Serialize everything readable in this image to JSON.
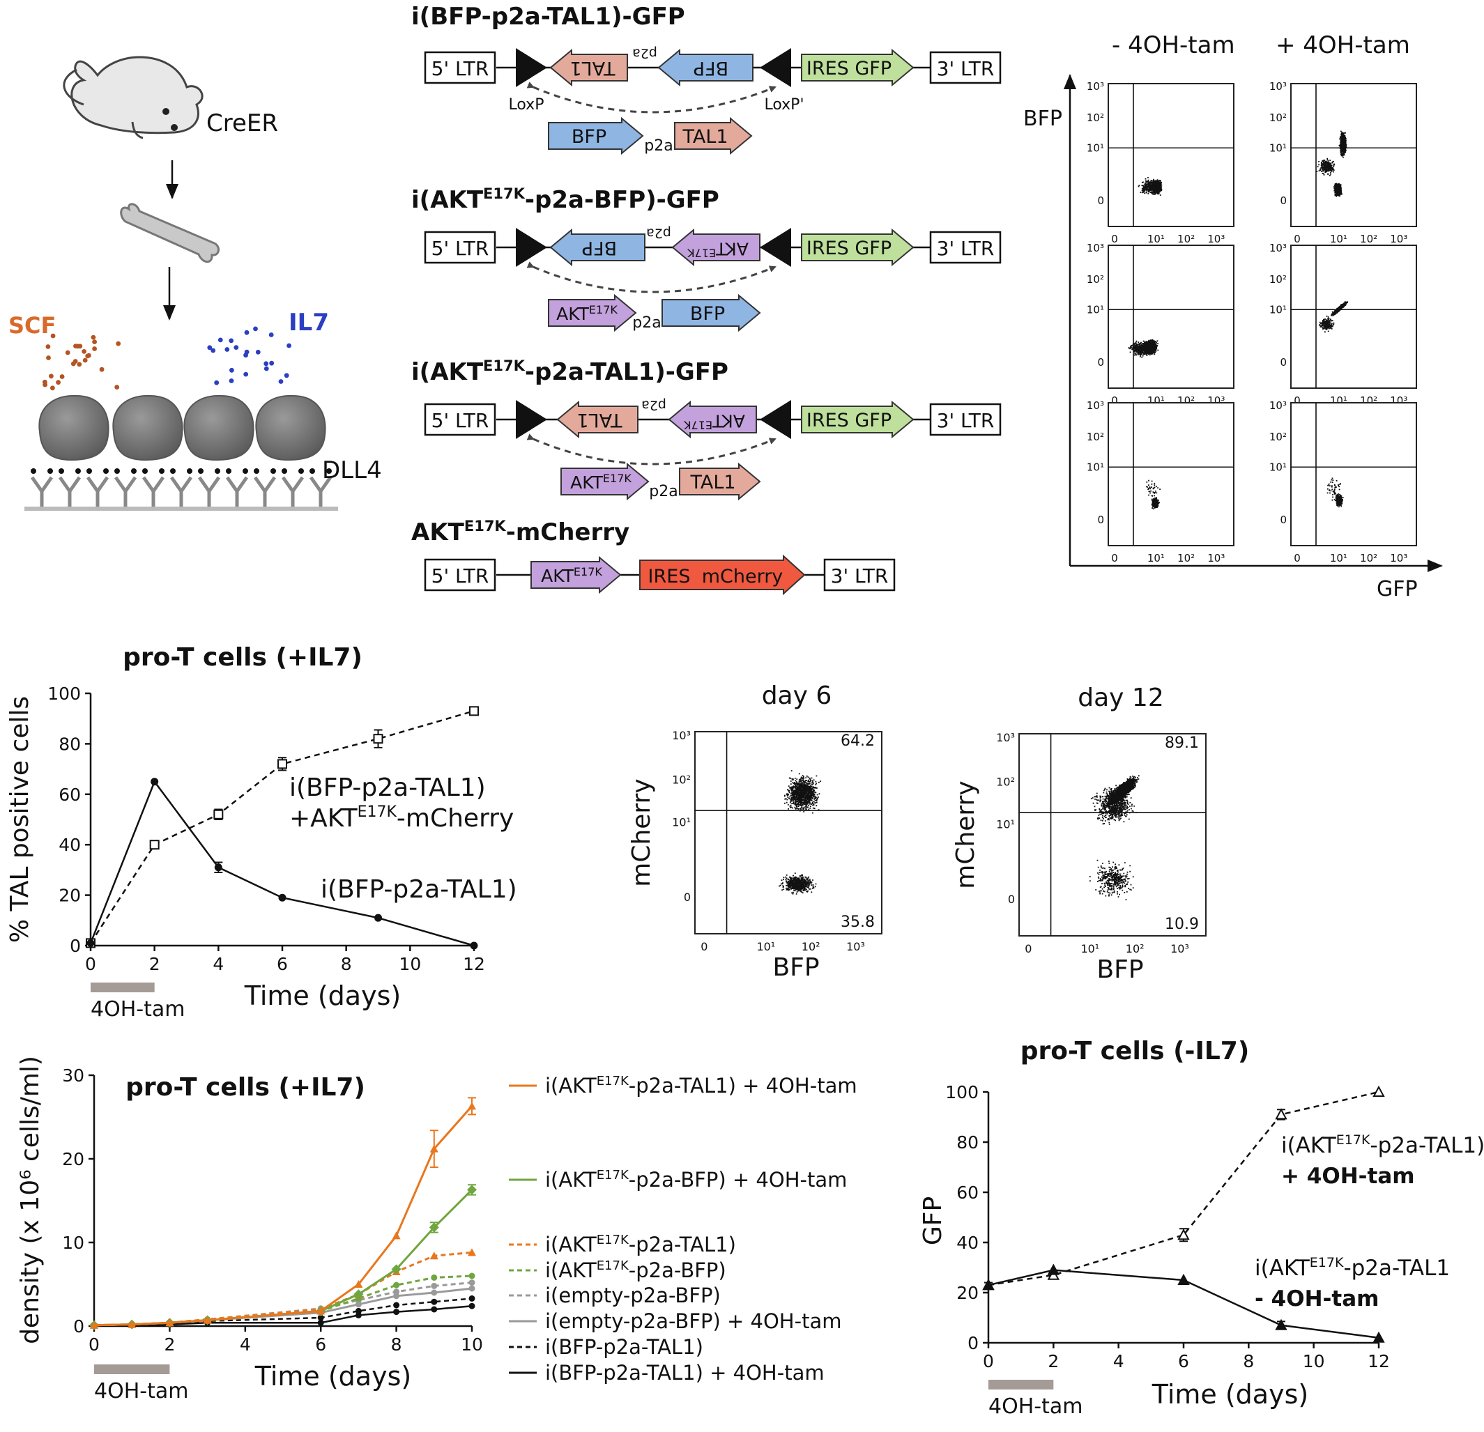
{
  "colors": {
    "blue": "#8fb6e3",
    "salmon": "#e3aa9c",
    "purple": "#c3a1dc",
    "green": "#bfe09c",
    "red": "#f0593f",
    "orange": "#e8771e",
    "lgreen": "#6fa63f",
    "gray": "#9a9a9a",
    "tam": "#a49a96"
  },
  "icons": [
    "mouse-icon",
    "bone-icon",
    "cell-icon",
    "antibody-icon",
    "loxp-triangle-icon"
  ],
  "panelA": {
    "mouse_label": "CreER",
    "scf": "SCF",
    "il7": "IL7",
    "dll4": "DLL4"
  },
  "constructs": {
    "c1": {
      "title": "i(BFP-p2a-TAL1)-GFP",
      "ltr5": "5' LTR",
      "ltr3": "3' LTR",
      "ires": "IRES GFP",
      "gene_a": "TAL1",
      "gene_b": "BFP",
      "p2a": "p2a",
      "loxp": "LoxP",
      "loxp2": "LoxP'",
      "inv_a": "BFP",
      "inv_b": "TAL1"
    },
    "c2": {
      "title_pre": "i(AKT",
      "title_sup": "E17K",
      "title_post": "-p2a-BFP)-GFP",
      "ltr5": "5' LTR",
      "ltr3": "3' LTR",
      "ires": "IRES GFP",
      "gene_a": "BFP",
      "gene_b": "AKT",
      "gene_b_sup": "E17K",
      "p2a": "p2a",
      "inv_a": "AKT",
      "inv_a_sup": "E17K",
      "inv_b": "BFP"
    },
    "c3": {
      "title_pre": "i(AKT",
      "title_sup": "E17K",
      "title_post": "-p2a-TAL1)-GFP",
      "ltr5": "5' LTR",
      "ltr3": "3' LTR",
      "ires": "IRES GFP",
      "gene_a": "TAL1",
      "gene_b": "AKT",
      "gene_b_sup": "E17K",
      "p2a": "p2a",
      "inv_a": "AKT",
      "inv_a_sup": "E17K",
      "inv_b": "TAL1"
    },
    "c4": {
      "title_pre": "AKT",
      "title_sup": "E17K",
      "title_post": "-mCherry",
      "ltr5": "5' LTR",
      "ltr3": "3' LTR",
      "gene": "AKT",
      "gene_sup": "E17K",
      "ires_a": "IRES",
      "ires_b": "mCherry"
    }
  },
  "flow_grid": {
    "col1": "- 4OH-tam",
    "col2": "+ 4OH-tam",
    "ylabel": "BFP",
    "xlabel": "GFP",
    "yticks": [
      "10³",
      "10²",
      "10¹",
      "0"
    ],
    "xticks": [
      "0",
      "10¹",
      "10²",
      "10³"
    ]
  },
  "flow_days": {
    "d6": {
      "title": "day 6",
      "ylabel": "mCherry",
      "xlabel": "BFP",
      "q_top": "64.2",
      "q_bot": "35.8"
    },
    "d12": {
      "title": "day 12",
      "ylabel": "mCherry",
      "xlabel": "BFP",
      "q_top": "89.1",
      "q_bot": "10.9"
    }
  },
  "chart_data": [
    {
      "type": "line",
      "title": "pro-T cells (+IL7)",
      "xlabel": "Time (days)",
      "ylabel": "% TAL positive cells",
      "xlim": [
        0,
        12
      ],
      "ylim": [
        0,
        100
      ],
      "xticks": [
        "0",
        "2",
        "4",
        "6",
        "8",
        "10",
        "12"
      ],
      "yticks": [
        "0",
        "20",
        "40",
        "60",
        "80",
        "100"
      ],
      "bar_label": "4OH-tam",
      "bar_range": [
        0,
        2
      ],
      "series": [
        {
          "name": "i(BFP-p2a-TAL1) +AKTE17K-mCherry",
          "style": "dashed-open-square",
          "x": [
            0,
            2,
            4,
            6,
            9,
            12
          ],
          "y": [
            1,
            40,
            52,
            72,
            82,
            93
          ],
          "err": [
            0,
            1.5,
            2,
            2.5,
            3.5,
            1
          ]
        },
        {
          "name": "i(BFP-p2a-TAL1)",
          "style": "solid-dot",
          "x": [
            0,
            2,
            4,
            6,
            9,
            12
          ],
          "y": [
            1,
            65,
            31,
            19,
            11,
            0
          ],
          "err": [
            0,
            0,
            2,
            0,
            0,
            0
          ]
        }
      ],
      "annotations": {
        "a1_l1": "i(BFP-p2a-TAL1)",
        "a1_l2_pre": "+AKT",
        "a1_l2_sup": "E17K",
        "a1_l2_post": "-mCherry",
        "a2": "i(BFP-p2a-TAL1)"
      }
    },
    {
      "type": "line",
      "title": "pro-T cells (+IL7)",
      "xlabel": "Time (days)",
      "ylabel": "density (x 10⁶ cells/ml)",
      "xlim": [
        0,
        10
      ],
      "ylim": [
        0,
        30
      ],
      "xticks": [
        "0",
        "2",
        "4",
        "6",
        "8",
        "10"
      ],
      "yticks": [
        "0",
        "10",
        "20",
        "30"
      ],
      "bar_label": "4OH-tam",
      "bar_range": [
        0,
        2
      ],
      "series": [
        {
          "name": "i(AKTE17K-p2a-TAL1) + 4OH-tam",
          "color": "orange",
          "dash": false,
          "x": [
            0,
            1,
            2,
            3,
            6,
            7,
            8,
            9,
            10
          ],
          "y": [
            0.1,
            0.2,
            0.4,
            0.7,
            1.8,
            5,
            10.8,
            21.2,
            26.3
          ]
        },
        {
          "name": "i(AKTE17K-p2a-BFP) + 4OH-tam",
          "color": "lgreen",
          "dash": false,
          "x": [
            0,
            1,
            2,
            3,
            6,
            7,
            8,
            9,
            10
          ],
          "y": [
            0.1,
            0.2,
            0.4,
            0.7,
            1.8,
            3.8,
            6.8,
            11.8,
            16.3
          ]
        },
        {
          "name": "i(AKTE17K-p2a-TAL1)",
          "color": "orange",
          "dash": true,
          "x": [
            0,
            1,
            2,
            3,
            6,
            7,
            8,
            9,
            10
          ],
          "y": [
            0.1,
            0.2,
            0.4,
            0.8,
            2.0,
            3.8,
            6.5,
            8.4,
            8.8
          ]
        },
        {
          "name": "i(AKTE17K-p2a-BFP)",
          "color": "lgreen",
          "dash": true,
          "x": [
            0,
            1,
            2,
            3,
            6,
            7,
            8,
            9,
            10
          ],
          "y": [
            0.1,
            0.2,
            0.4,
            0.8,
            1.8,
            3.3,
            4.9,
            5.8,
            6.0
          ]
        },
        {
          "name": "i(empty-p2a-BFP)",
          "color": "gray",
          "dash": true,
          "x": [
            0,
            1,
            2,
            3,
            6,
            7,
            8,
            9,
            10
          ],
          "y": [
            0.1,
            0.2,
            0.4,
            0.8,
            2.1,
            3.1,
            4.1,
            4.8,
            5.2
          ]
        },
        {
          "name": "i(empty-p2a-BFP) + 4OH-tam",
          "color": "gray",
          "dash": false,
          "x": [
            0,
            1,
            2,
            3,
            6,
            7,
            8,
            9,
            10
          ],
          "y": [
            0.1,
            0.2,
            0.4,
            0.7,
            1.6,
            2.6,
            3.6,
            4.0,
            4.5
          ]
        },
        {
          "name": "i(BFP-p2a-TAL1)",
          "color": "black",
          "dash": true,
          "x": [
            0,
            1,
            2,
            3,
            6,
            7,
            8,
            9,
            10
          ],
          "y": [
            0.1,
            0.2,
            0.4,
            0.6,
            1.0,
            1.8,
            2.5,
            2.9,
            3.3
          ]
        },
        {
          "name": "i(BFP-p2a-TAL1) + 4OH-tam",
          "color": "black",
          "dash": false,
          "x": [
            0,
            1,
            2,
            3,
            6,
            7,
            8,
            9,
            10
          ],
          "y": [
            0.1,
            0.1,
            0.2,
            0.4,
            0.4,
            1.3,
            1.7,
            2.0,
            2.4
          ]
        }
      ],
      "legend_sup": "E17K"
    },
    {
      "type": "line",
      "title": "pro-T cells (-IL7)",
      "xlabel": "Time (days)",
      "ylabel": "GFP",
      "xlim": [
        0,
        12
      ],
      "ylim": [
        0,
        100
      ],
      "xticks": [
        "0",
        "2",
        "4",
        "6",
        "8",
        "10",
        "12"
      ],
      "yticks": [
        "0",
        "20",
        "40",
        "60",
        "80",
        "100"
      ],
      "bar_label": "4OH-tam",
      "bar_range": [
        0,
        2
      ],
      "series": [
        {
          "name": "i(AKTE17K-p2a-TAL1) + 4OH-tam",
          "style": "dashed-open-triangle",
          "x": [
            0,
            2,
            6,
            9,
            12
          ],
          "y": [
            23,
            27,
            43,
            91,
            100
          ],
          "err": [
            1,
            1.5,
            2.5,
            2,
            0
          ]
        },
        {
          "name": "i(AKTE17K-p2a-TAL1 - 4OH-tam",
          "style": "solid-filled-triangle",
          "x": [
            0,
            2,
            6,
            9,
            12
          ],
          "y": [
            23,
            29,
            25,
            7,
            2
          ],
          "err": [
            0,
            0,
            0,
            1.5,
            0
          ]
        }
      ],
      "annotations": {
        "a1_pre": "i(AKT",
        "a1_sup": "E17K",
        "a1_post": "-p2a-TAL1)",
        "a1_b": "+ 4OH-tam",
        "a2_pre": "i(AKT",
        "a2_sup": "E17K",
        "a2_post": "-p2a-TAL1",
        "a2_b": "- 4OH-tam"
      }
    }
  ]
}
